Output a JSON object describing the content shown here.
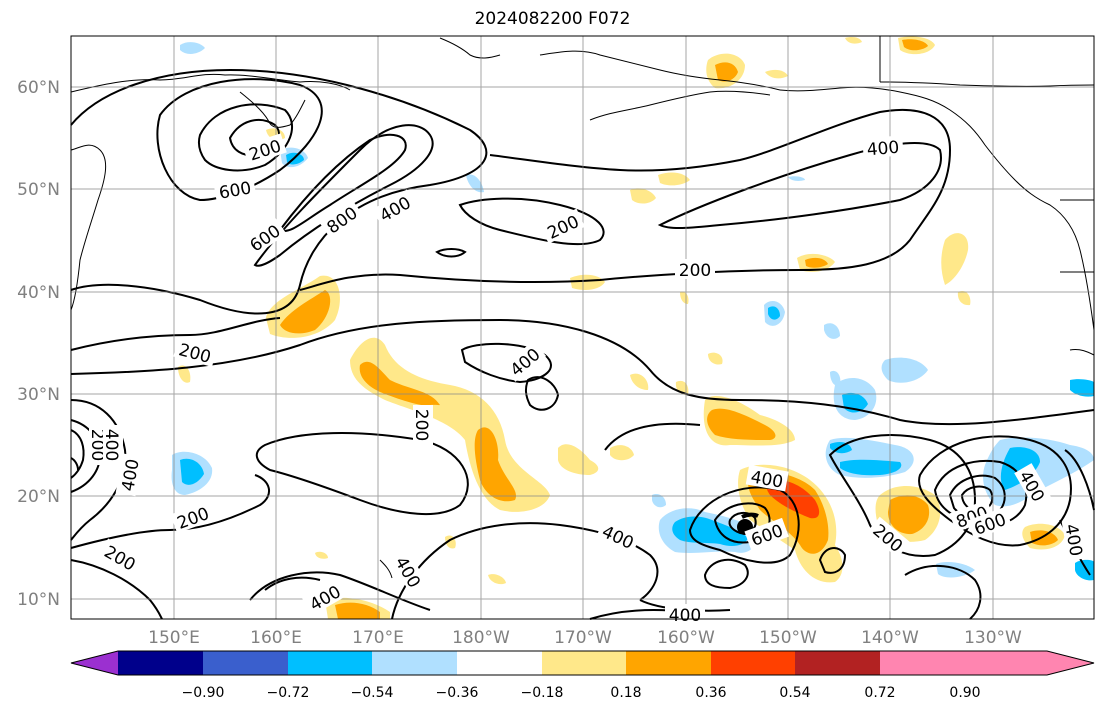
{
  "title": "2024082200 F072",
  "lat_labels": [
    "60°N",
    "50°N",
    "40°N",
    "30°N",
    "20°N",
    "10°N"
  ],
  "lon_labels": [
    "150°E",
    "160°E",
    "170°E",
    "180°W",
    "170°W",
    "160°W",
    "150°W",
    "140°W",
    "130°W"
  ],
  "colorbar": {
    "tick_labels": [
      "−0.90",
      "−0.72",
      "−0.54",
      "−0.36",
      "−0.18",
      "0.18",
      "0.36",
      "0.54",
      "0.72",
      "0.90"
    ],
    "colors": [
      "#9b30d0",
      "#00008b",
      "#3a5fcd",
      "#00bfff",
      "#b0e0ff",
      "#ffffff",
      "#ffe88a",
      "#ffa500",
      "#ff4000",
      "#b22222",
      "#ff85b0"
    ]
  },
  "contour_labels": [
    "200",
    "600",
    "600",
    "800",
    "400",
    "200",
    "200",
    "400",
    "200",
    "400",
    "200",
    "400",
    "200",
    "200",
    "400",
    "400",
    "600",
    "400",
    "800",
    "600",
    "400",
    "200",
    "400",
    "400",
    "400",
    "200",
    "400"
  ],
  "marker": "storm-center"
}
